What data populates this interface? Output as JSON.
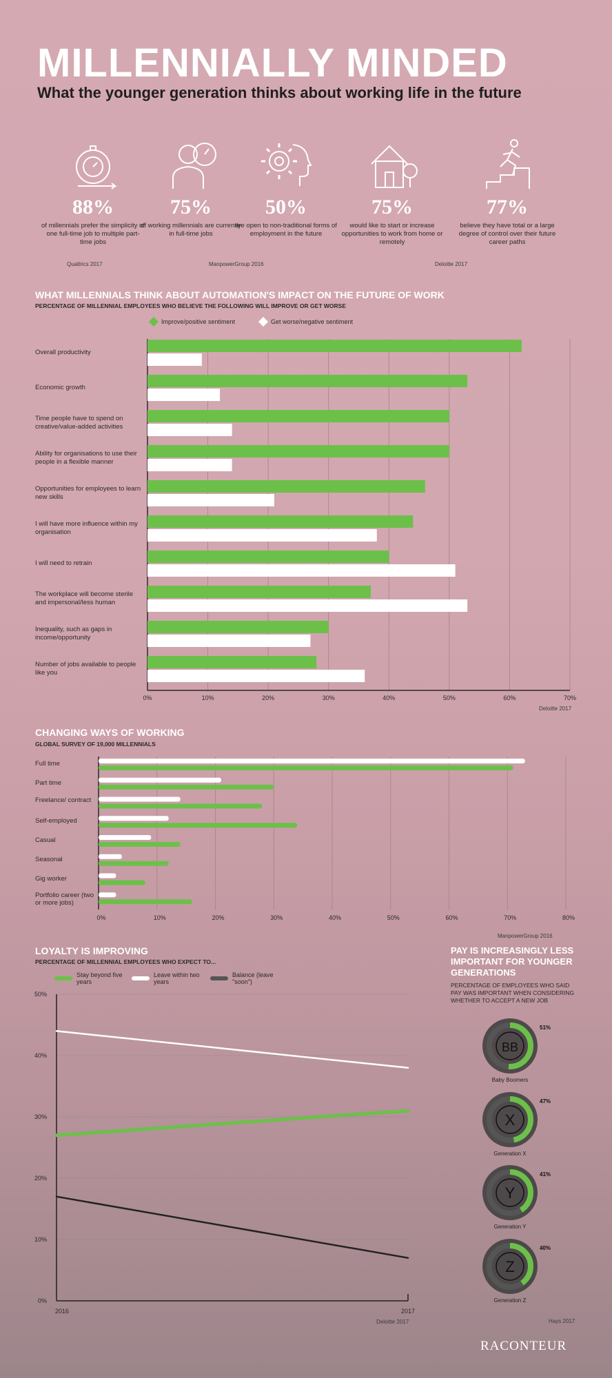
{
  "header": {
    "title": "MILLENNIALLY MINDED",
    "subtitle": "What the younger generation thinks about working life in the future"
  },
  "stats": [
    {
      "icon": "stopwatch-icon",
      "value": "88%",
      "text": "of millennials prefer the simplicity of one full-time job to multiple part-time jobs"
    },
    {
      "icon": "worker-icon",
      "value": "75%",
      "text": "of working millennials are currently in full-time jobs"
    },
    {
      "icon": "gear-head-icon",
      "value": "50%",
      "text": "are open to non-traditional forms of employment in the future"
    },
    {
      "icon": "house-icon",
      "value": "75%",
      "text": "would like to start or increase opportunities to work from home or remotely"
    },
    {
      "icon": "runner-stairs-icon",
      "value": "77%",
      "text": "believe they have total or a large degree of control over their future career paths"
    }
  ],
  "stat_sources": [
    "Qualtrics 2017",
    "ManpowerGroup 2016",
    "Deloitte 2017"
  ],
  "automation": {
    "title": "WHAT MILLENNIALS THINK ABOUT AUTOMATION'S IMPACT ON THE FUTURE OF WORK",
    "subtitle": "PERCENTAGE OF MILLENNIAL EMPLOYEES WHO BELIEVE THE FOLLOWING WILL IMPROVE OR GET WORSE",
    "source": "Deloitte 2017"
  },
  "changing": {
    "title": "CHANGING WAYS OF WORKING",
    "subtitle": "GLOBAL SURVEY OF 19,000 MILLENNIALS",
    "source": "ManpowerGroup 2016"
  },
  "loyalty": {
    "title": "LOYALTY IS IMPROVING",
    "subtitle": "PERCENTAGE OF MILLENNIAL EMPLOYEES WHO EXPECT TO...",
    "source": "Deloitte 2017"
  },
  "pay": {
    "title": "PAY IS INCREASINGLY LESS IMPORTANT FOR YOUNGER GENERATIONS",
    "subtitle": "PERCENTAGE OF EMPLOYEES WHO SAID PAY WAS IMPORTANT WHEN CONSIDERING WHETHER TO ACCEPT A NEW JOB",
    "source": "Hays 2017"
  },
  "footer": {
    "brand": "RACONTEUR"
  },
  "colors": {
    "green": "#6cc04a",
    "white": "#ffffff",
    "dark": "#222222",
    "pink": "#d4a9b2"
  },
  "chart_data": [
    {
      "type": "bar",
      "title": "WHAT MILLENNIALS THINK ABOUT AUTOMATION'S IMPACT ON THE FUTURE OF WORK",
      "subtitle": "PERCENTAGE OF MILLENNIAL EMPLOYEES WHO BELIEVE THE FOLLOWING WILL IMPROVE OR GET WORSE",
      "orientation": "horizontal",
      "categories": [
        "Overall productivity",
        "Economic growth",
        "Time people have to spend on creative/value-added activities",
        "Ability for organisations to use their people in a flexible manner",
        "Opportunities for employees to learn new skills",
        "I will have more influence within my organisation",
        "I will need to retrain",
        "The workplace will become sterile and impersonal/less human",
        "Inequality, such as gaps in income/opportunity",
        "Number of jobs available to people like you"
      ],
      "series": [
        {
          "name": "Improve/positive sentiment",
          "color": "#6cc04a",
          "values": [
            62,
            53,
            50,
            50,
            46,
            44,
            40,
            37,
            30,
            28
          ]
        },
        {
          "name": "Get worse/negative sentiment",
          "color": "#ffffff",
          "values": [
            9,
            12,
            14,
            14,
            21,
            38,
            51,
            53,
            27,
            36
          ]
        }
      ],
      "xlim": [
        0,
        70
      ],
      "ticks": [
        "0%",
        "10%",
        "20%",
        "30%",
        "40%",
        "50%",
        "60%",
        "70%"
      ],
      "grid": true,
      "legend": "top"
    },
    {
      "type": "bar",
      "title": "CHANGING WAYS OF WORKING",
      "subtitle": "GLOBAL SURVEY OF 19,000 MILLENNIALS",
      "orientation": "horizontal",
      "categories": [
        "Full time",
        "Part time",
        "Freelance/ contract",
        "Self-employed",
        "Casual",
        "Seasonal",
        "Gig worker",
        "Portfolio career (two or more jobs)"
      ],
      "series": [
        {
          "color": "#ffffff",
          "values": [
            73,
            21,
            14,
            12,
            9,
            4,
            3,
            3
          ]
        },
        {
          "color": "#6cc04a",
          "values": [
            71,
            30,
            28,
            34,
            14,
            12,
            8,
            16
          ]
        }
      ],
      "xlim": [
        0,
        80
      ],
      "ticks": [
        "0%",
        "10%",
        "20%",
        "30%",
        "40%",
        "50%",
        "60%",
        "70%",
        "80%"
      ],
      "grid": true
    },
    {
      "type": "line",
      "title": "LOYALTY IS IMPROVING",
      "subtitle": "PERCENTAGE OF MILLENNIAL EMPLOYEES WHO EXPECT TO...",
      "x": [
        "2016",
        "2017"
      ],
      "series": [
        {
          "name": "Stay beyond five years",
          "color": "#6cc04a",
          "values": [
            27,
            31
          ]
        },
        {
          "name": "Leave within two years",
          "color": "#ffffff",
          "values": [
            44,
            38
          ]
        },
        {
          "name": "Balance (leave \"soon\")",
          "color": "#222222",
          "values": [
            17,
            7
          ]
        }
      ],
      "ylim": [
        0,
        50
      ],
      "ticks": [
        "0%",
        "10%",
        "20%",
        "30%",
        "40%",
        "50%"
      ],
      "grid": true,
      "legend": "top"
    },
    {
      "type": "pie",
      "title": "PAY IS INCREASINGLY LESS IMPORTANT FOR YOUNGER GENERATIONS",
      "items": [
        {
          "code": "BB",
          "name": "Baby Boomers",
          "value": 51,
          "label": "51%"
        },
        {
          "code": "X",
          "name": "Generation X",
          "value": 47,
          "label": "47%"
        },
        {
          "code": "Y",
          "name": "Generation Y",
          "value": 41,
          "label": "41%"
        },
        {
          "code": "Z",
          "name": "Generation Z",
          "value": 40,
          "label": "40%"
        }
      ]
    }
  ]
}
